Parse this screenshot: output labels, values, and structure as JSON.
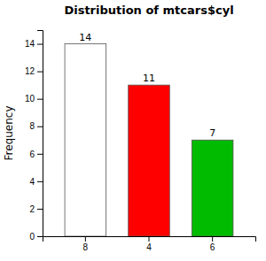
{
  "chart_data": {
    "type": "bar",
    "title": "Distribution of mtcars$cyl",
    "categories": [
      "8",
      "4",
      "6"
    ],
    "values": [
      14,
      11,
      7
    ],
    "colors": [
      "#ffffff",
      "#ff0000",
      "#00bb00"
    ],
    "ylabel": "Frequency",
    "ylim": [
      0,
      15
    ],
    "yticks": [
      0,
      2,
      4,
      6,
      8,
      10,
      12,
      14
    ],
    "grid": false,
    "data_labels": true
  }
}
